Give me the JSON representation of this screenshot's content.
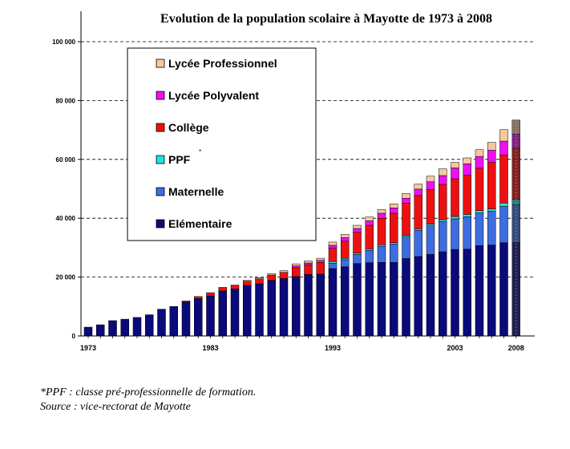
{
  "chart_data": {
    "type": "bar",
    "stacked": true,
    "title": "Evolution de la population scolaire à Mayotte de 1973 à 2008",
    "xlabel": "",
    "ylabel": "",
    "ylim": [
      0,
      100000
    ],
    "y_ticks": [
      "0",
      "20 000",
      "40 000",
      "60 000",
      "80 000",
      "100 000"
    ],
    "x_tick_labels": [
      {
        "year": 1973,
        "label": "1973"
      },
      {
        "year": 1983,
        "label": "1983"
      },
      {
        "year": 1993,
        "label": "1993"
      },
      {
        "year": 2003,
        "label": "2003"
      },
      {
        "year": 2008,
        "label": "2008"
      }
    ],
    "grid": "horizontal dashed",
    "legend_position": "top-left",
    "categories": [
      "1973",
      "1974",
      "1975",
      "1976",
      "1977",
      "1978",
      "1979",
      "1980",
      "1981",
      "1982",
      "1983",
      "1984",
      "1985",
      "1986",
      "1987",
      "1988",
      "1989",
      "1990",
      "1991",
      "1992",
      "1993",
      "1994",
      "1995",
      "1996",
      "1997",
      "1998",
      "1999",
      "2000",
      "2001",
      "2002",
      "2003",
      "2004",
      "2005",
      "2006",
      "2007",
      "2008"
    ],
    "series": [
      {
        "name": "Elémentaire",
        "color": "#0a0a7a",
        "values": [
          3000,
          3800,
          5200,
          5700,
          6300,
          7200,
          9100,
          10000,
          11500,
          12700,
          13600,
          15300,
          16000,
          17200,
          17700,
          18900,
          19500,
          20200,
          20900,
          21000,
          22900,
          23500,
          24600,
          24900,
          25000,
          25000,
          26300,
          27000,
          27700,
          28600,
          29400,
          29500,
          30700,
          30900,
          31700,
          31700
        ]
      },
      {
        "name": "Maternelle",
        "color": "#3d6de0",
        "values": [
          0,
          0,
          0,
          0,
          0,
          0,
          0,
          0,
          0,
          0,
          0,
          0,
          0,
          0,
          0,
          0,
          0,
          0,
          0,
          0,
          1800,
          2400,
          3100,
          4200,
          5500,
          6200,
          7300,
          8900,
          9700,
          10300,
          10400,
          11000,
          11100,
          11500,
          12300,
          12900
        ]
      },
      {
        "name": "PPF",
        "color": "#22e0e0",
        "values": [
          0,
          0,
          0,
          0,
          0,
          0,
          0,
          0,
          0,
          0,
          0,
          0,
          0,
          0,
          0,
          0,
          0,
          0,
          0,
          0,
          600,
          500,
          500,
          500,
          500,
          500,
          500,
          500,
          600,
          600,
          800,
          800,
          800,
          800,
          1200,
          1800
        ]
      },
      {
        "name": "Collège",
        "color": "#ee1010",
        "values": [
          0,
          0,
          0,
          0,
          0,
          0,
          0,
          0,
          400,
          700,
          1100,
          1200,
          1300,
          1400,
          1700,
          1800,
          2100,
          3000,
          3300,
          4000,
          4500,
          5800,
          7000,
          8000,
          9000,
          10000,
          11000,
          11300,
          11800,
          12000,
          12800,
          13300,
          14400,
          15800,
          16300,
          17400
        ]
      },
      {
        "name": "Lycée Polyvalent",
        "color": "#ee10ee",
        "values": [
          0,
          0,
          0,
          0,
          0,
          0,
          0,
          0,
          0,
          0,
          0,
          0,
          0,
          0,
          0,
          0,
          0,
          600,
          600,
          700,
          1000,
          1200,
          1300,
          1500,
          1700,
          1800,
          1700,
          2200,
          2600,
          3000,
          3700,
          3900,
          4000,
          4100,
          4700,
          4800
        ]
      },
      {
        "name": "Lycée Professionnel",
        "color": "#f5c8a0",
        "values": [
          0,
          0,
          0,
          0,
          0,
          0,
          0,
          0,
          0,
          0,
          0,
          0,
          0,
          300,
          400,
          500,
          600,
          700,
          700,
          700,
          1100,
          1100,
          1100,
          1300,
          1300,
          1400,
          1600,
          1700,
          1900,
          2300,
          1900,
          2000,
          2300,
          2700,
          3900,
          4800
        ]
      }
    ],
    "legend_order": [
      "Lycée Professionnel",
      "Lycée Polyvalent",
      "Collège",
      "PPF",
      "Maternelle",
      "Elémentaire"
    ],
    "ppf_asterisk": "*"
  },
  "footnote": {
    "line1": "*PPF : classe pré-professionnelle de formation.",
    "line2": "Source : vice-rectorat de Mayotte"
  }
}
